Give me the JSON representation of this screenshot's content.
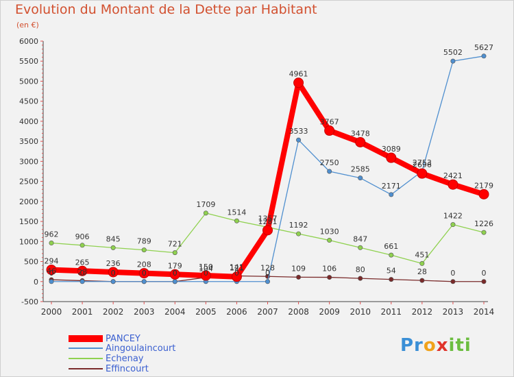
{
  "title": "Evolution du Montant de la Dette par Habitant",
  "subtitle": "(en €)",
  "logo_text": "Proxiti",
  "chart_data": {
    "type": "line",
    "title": "Evolution du Montant de la Dette par Habitant",
    "ylabel": "(en €)",
    "xlabel": "",
    "x": [
      "2000",
      "2001",
      "2002",
      "2003",
      "2004",
      "2005",
      "2006",
      "2007",
      "2008",
      "2009",
      "2010",
      "2011",
      "2012",
      "2013",
      "2014"
    ],
    "ylim": [
      -500,
      6000
    ],
    "yticks": [
      "-500",
      "0",
      "500",
      "1000",
      "1500",
      "2000",
      "2500",
      "3000",
      "3500",
      "4000",
      "4500",
      "5000",
      "5500",
      "6000"
    ],
    "ytick_values": [
      -500,
      0,
      500,
      1000,
      1500,
      2000,
      2500,
      3000,
      3500,
      4000,
      4500,
      5000,
      5500,
      6000
    ],
    "grid": false,
    "legend_position": "bottom-left",
    "series": [
      {
        "name": "PANCEY",
        "color": "#ff0000",
        "values": [
          294,
          265,
          236,
          208,
          179,
          150,
          121,
          1281,
          4961,
          3767,
          3478,
          3089,
          2696,
          2421,
          2179
        ],
        "labels": [
          "294",
          "265",
          "236",
          "208",
          "179",
          "150",
          "121",
          "1281",
          "4961",
          "3767",
          "3478",
          "3089",
          "2696",
          "2421",
          "2179"
        ]
      },
      {
        "name": "Aingoulaincourt",
        "color": "#4f8fcf",
        "values": [
          0,
          0,
          0,
          0,
          0,
          0,
          0,
          0,
          3533,
          2750,
          2585,
          2171,
          2753,
          5502,
          5627
        ],
        "labels": [
          "0",
          "0",
          "0",
          "0",
          "0",
          "0",
          "0",
          "0",
          "3533",
          "2750",
          "2585",
          "2171",
          "2753",
          "5502",
          "5627"
        ]
      },
      {
        "name": "Echenay",
        "color": "#8fd14f",
        "values": [
          962,
          906,
          845,
          789,
          721,
          1709,
          1514,
          1357,
          1192,
          1030,
          847,
          661,
          451,
          1422,
          1226
        ],
        "labels": [
          "962",
          "906",
          "845",
          "789",
          "721",
          "1709",
          "1514",
          "1357",
          "1192",
          "1030",
          "847",
          "661",
          "451",
          "1422",
          "1226"
        ]
      },
      {
        "name": "Effincourt",
        "color": "#7a2a2a",
        "values": [
          46,
          23,
          0,
          0,
          0,
          104,
          141,
          128,
          109,
          106,
          80,
          54,
          28,
          0,
          0
        ],
        "labels": [
          "46",
          "23",
          "0",
          "0",
          "0",
          "104",
          "141",
          "128",
          "109",
          "106",
          "80",
          "54",
          "28",
          "0",
          "0"
        ]
      }
    ]
  }
}
